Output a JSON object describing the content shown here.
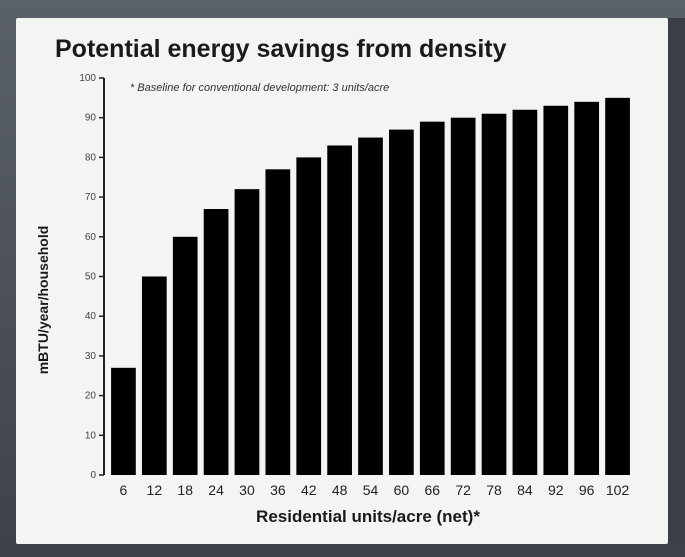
{
  "chart_data": {
    "type": "bar",
    "title": "Potential energy savings from density",
    "annotation": "* Baseline for conventional development: 3 units/acre",
    "xlabel": "Residential units/acre (net)*",
    "ylabel": "mBTU/year/household",
    "categories": [
      "6",
      "12",
      "18",
      "24",
      "30",
      "36",
      "42",
      "48",
      "54",
      "60",
      "66",
      "72",
      "78",
      "84",
      "92",
      "96",
      "102"
    ],
    "values": [
      27,
      50,
      60,
      67,
      72,
      77,
      80,
      83,
      85,
      87,
      89,
      90,
      91,
      92,
      93,
      94,
      95
    ],
    "ylim": [
      0,
      100
    ],
    "yticks": [
      "0",
      "10",
      "20",
      "30",
      "40",
      "50",
      "60",
      "70",
      "80",
      "90",
      "100"
    ],
    "bar_color": "#000000",
    "grid": false
  }
}
